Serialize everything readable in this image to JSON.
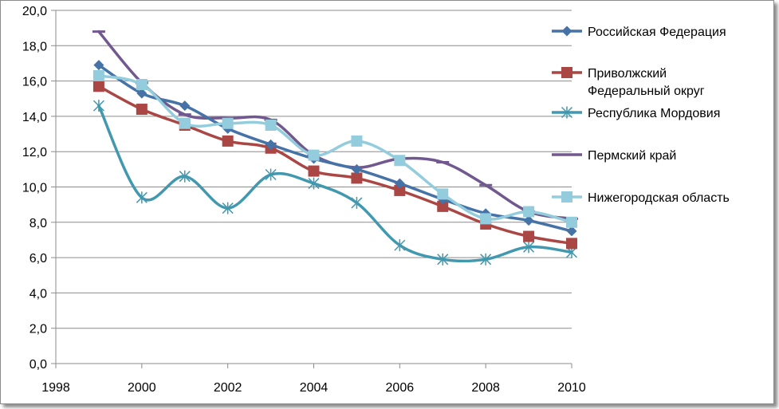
{
  "chart_data": {
    "type": "line",
    "title": "",
    "xlabel": "",
    "ylabel": "",
    "xlim": [
      1998,
      2010
    ],
    "ylim": [
      0,
      20
    ],
    "x_ticks": [
      "1998",
      "2000",
      "2002",
      "2004",
      "2006",
      "2008",
      "2010"
    ],
    "y_ticks": [
      "0,0",
      "2,0",
      "4,0",
      "6,0",
      "8,0",
      "10,0",
      "12,0",
      "14,0",
      "16,0",
      "18,0",
      "20,0"
    ],
    "grid": "horizontal",
    "legend_position": "right",
    "x": [
      1999,
      2000,
      2001,
      2002,
      2003,
      2004,
      2005,
      2006,
      2007,
      2008,
      2009,
      2010
    ],
    "series": [
      {
        "name": "Российская Федерация",
        "legend_lines": [
          "Российская Федерация"
        ],
        "color": "#4572a7",
        "marker": "diamond",
        "values": [
          16.9,
          15.3,
          14.6,
          13.3,
          12.4,
          11.6,
          11.0,
          10.2,
          9.3,
          8.5,
          8.1,
          7.5
        ]
      },
      {
        "name": "Приволжский Федеральный округ",
        "legend_lines": [
          "Приволжский",
          "Федеральный округ"
        ],
        "color": "#aa4643",
        "marker": "square",
        "values": [
          15.7,
          14.4,
          13.5,
          12.6,
          12.2,
          10.9,
          10.5,
          9.8,
          8.9,
          7.9,
          7.2,
          6.8
        ]
      },
      {
        "name": "Республика Мордовия",
        "legend_lines": [
          "Республика Мордовия"
        ],
        "color": "#4198af",
        "marker": "star",
        "values": [
          14.6,
          9.4,
          10.6,
          8.8,
          10.7,
          10.2,
          9.1,
          6.7,
          5.9,
          5.9,
          6.6,
          6.3
        ]
      },
      {
        "name": "Пермский край",
        "legend_lines": [
          "Пермский край"
        ],
        "color": "#71588f",
        "marker": "dash",
        "values": [
          18.8,
          15.9,
          14.1,
          13.9,
          13.8,
          11.8,
          11.1,
          11.6,
          11.4,
          10.1,
          8.6,
          8.2
        ]
      },
      {
        "name": "Нижегородская область",
        "legend_lines": [
          "Нижегородская область"
        ],
        "color": "#93cddd",
        "marker": "square",
        "values": [
          16.3,
          15.8,
          13.6,
          13.6,
          13.5,
          11.8,
          12.6,
          11.5,
          9.6,
          8.2,
          8.6,
          8.0
        ]
      }
    ]
  }
}
